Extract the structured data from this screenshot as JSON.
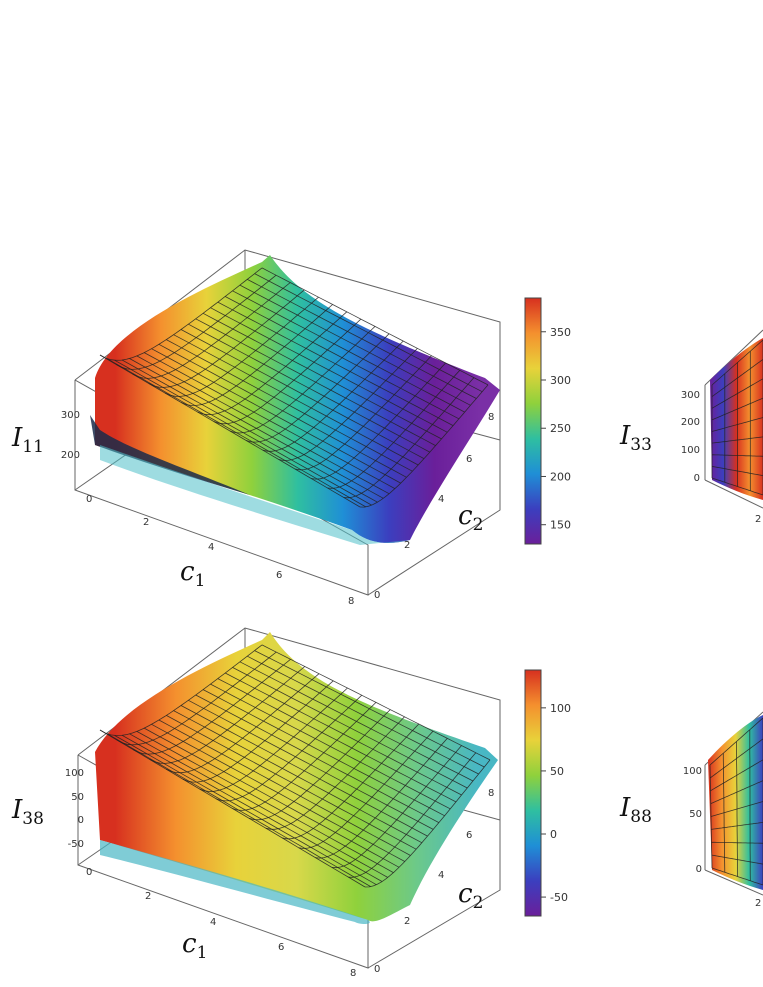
{
  "chart_data": [
    {
      "type": "surface3d",
      "panel": "I11",
      "zlabel": {
        "main": "I",
        "sub": "11"
      },
      "xlabel": {
        "main": "c",
        "sub": "1"
      },
      "ylabel": {
        "main": "c",
        "sub": "2"
      },
      "xlim": [
        0,
        8
      ],
      "ylim": [
        0,
        8
      ],
      "zlim": [
        130,
        380
      ],
      "xticks": [
        "0",
        "2",
        "4",
        "6",
        "8"
      ],
      "yticks": [
        "0",
        "2",
        "4",
        "6",
        "8"
      ],
      "zticks": [
        "200",
        "300"
      ],
      "colorbar": {
        "min": 130,
        "max": 385,
        "ticks": [
          "150",
          "200",
          "250",
          "300",
          "350"
        ]
      },
      "colormap": [
        "#6a1f9a",
        "#3b3fbf",
        "#1f8fd6",
        "#2fbfa0",
        "#8fd13c",
        "#e8d23a",
        "#f4902e",
        "#d7301f"
      ],
      "surface_samples": [
        {
          "c1": 0.3,
          "c2": 8,
          "z": 380
        },
        {
          "c1": 0.3,
          "c2": 4,
          "z": 360
        },
        {
          "c1": 0.3,
          "c2": 1,
          "z": 340
        },
        {
          "c1": 2,
          "c2": 8,
          "z": 260
        },
        {
          "c1": 2,
          "c2": 4,
          "z": 210
        },
        {
          "c1": 2,
          "c2": 1,
          "z": 165
        },
        {
          "c1": 5,
          "c2": 8,
          "z": 235
        },
        {
          "c1": 5,
          "c2": 4,
          "z": 190
        },
        {
          "c1": 5,
          "c2": 1,
          "z": 140
        },
        {
          "c1": 8,
          "c2": 8,
          "z": 230
        },
        {
          "c1": 8,
          "c2": 4,
          "z": 185
        },
        {
          "c1": 8,
          "c2": 1,
          "z": 135
        }
      ]
    },
    {
      "type": "surface3d",
      "panel": "I33",
      "zlabel": {
        "main": "I",
        "sub": "33"
      },
      "zticks": [
        "0",
        "100",
        "200",
        "300"
      ],
      "xticks": [
        "2"
      ]
    },
    {
      "type": "surface3d",
      "panel": "I38",
      "zlabel": {
        "main": "I",
        "sub": "38"
      },
      "xlabel": {
        "main": "c",
        "sub": "1"
      },
      "ylabel": {
        "main": "c",
        "sub": "2"
      },
      "xlim": [
        0,
        8
      ],
      "ylim": [
        0,
        8
      ],
      "zlim": [
        -60,
        130
      ],
      "xticks": [
        "0",
        "2",
        "4",
        "6",
        "8"
      ],
      "yticks": [
        "0",
        "2",
        "4",
        "6",
        "8"
      ],
      "zticks": [
        "-50",
        "0",
        "50",
        "100"
      ],
      "colorbar": {
        "min": -65,
        "max": 130,
        "ticks": [
          "-50",
          "0",
          "50",
          "100"
        ]
      },
      "colormap": [
        "#6a1f9a",
        "#3b3fbf",
        "#1f8fd6",
        "#2fbfa0",
        "#8fd13c",
        "#e8d23a",
        "#f4902e",
        "#d7301f"
      ],
      "surface_samples": [
        {
          "c1": 0.3,
          "c2": 8,
          "z": 125
        },
        {
          "c1": 0.3,
          "c2": 4,
          "z": 110
        },
        {
          "c1": 0.3,
          "c2": 1,
          "z": 95
        },
        {
          "c1": 2,
          "c2": 8,
          "z": 35
        },
        {
          "c1": 2,
          "c2": 4,
          "z": 55
        },
        {
          "c1": 2,
          "c2": 1,
          "z": 10
        },
        {
          "c1": 5,
          "c2": 8,
          "z": 25
        },
        {
          "c1": 5,
          "c2": 4,
          "z": 60
        },
        {
          "c1": 5,
          "c2": 1,
          "z": 5
        },
        {
          "c1": 8,
          "c2": 8,
          "z": 20
        },
        {
          "c1": 8,
          "c2": 4,
          "z": 55
        },
        {
          "c1": 8,
          "c2": 1,
          "z": 0
        }
      ]
    },
    {
      "type": "surface3d",
      "panel": "I88",
      "zlabel": {
        "main": "I",
        "sub": "88"
      },
      "zticks": [
        "0",
        "50",
        "100"
      ],
      "xticks": [
        "2"
      ]
    }
  ]
}
